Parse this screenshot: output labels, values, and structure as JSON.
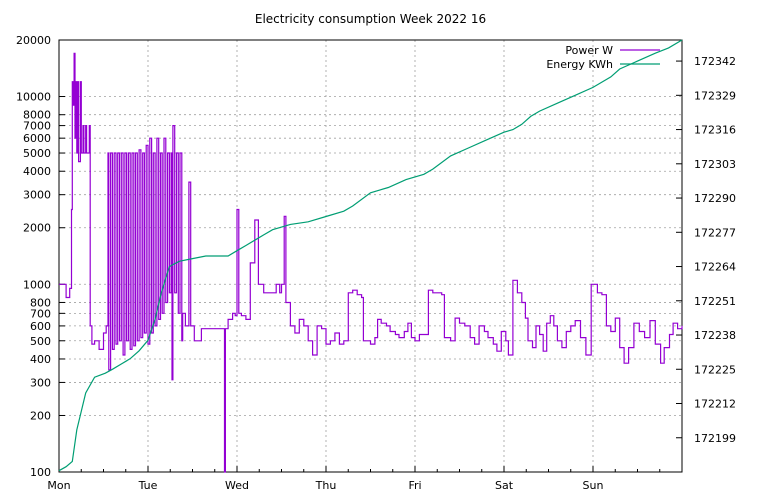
{
  "chart_data": {
    "type": "line",
    "title": "Electricity consumption Week 2022 16",
    "xlabel": "",
    "ylabel": "",
    "x_categories": [
      "Mon",
      "Tue",
      "Wed",
      "Thu",
      "Fri",
      "Sat",
      "Sun"
    ],
    "xlim_days": [
      0,
      7
    ],
    "y_left": {
      "scale": "log",
      "lim": [
        100,
        20000
      ],
      "ticks": [
        100,
        200,
        300,
        400,
        500,
        600,
        700,
        800,
        1000,
        2000,
        3000,
        4000,
        5000,
        6000,
        7000,
        8000,
        10000,
        20000
      ]
    },
    "y_right": {
      "scale": "linear",
      "lim": [
        172186,
        172350
      ],
      "ticks": [
        172199,
        172212,
        172225,
        172238,
        172251,
        172264,
        172277,
        172290,
        172303,
        172316,
        172329,
        172342
      ]
    },
    "grid": true,
    "legend_position": "top-right",
    "series": [
      {
        "name": "Power W",
        "axis": "left",
        "color": "#9400d3",
        "points": [
          [
            0.0,
            1000
          ],
          [
            0.06,
            1000
          ],
          [
            0.08,
            850
          ],
          [
            0.12,
            950
          ],
          [
            0.14,
            2500
          ],
          [
            0.15,
            12000
          ],
          [
            0.16,
            9000
          ],
          [
            0.17,
            17000
          ],
          [
            0.18,
            6000
          ],
          [
            0.19,
            12000
          ],
          [
            0.2,
            5000
          ],
          [
            0.21,
            12000
          ],
          [
            0.22,
            4500
          ],
          [
            0.24,
            12000
          ],
          [
            0.25,
            5000
          ],
          [
            0.27,
            7000
          ],
          [
            0.28,
            5000
          ],
          [
            0.3,
            7000
          ],
          [
            0.31,
            5000
          ],
          [
            0.34,
            7000
          ],
          [
            0.35,
            600
          ],
          [
            0.37,
            480
          ],
          [
            0.4,
            500
          ],
          [
            0.45,
            450
          ],
          [
            0.48,
            450
          ],
          [
            0.5,
            550
          ],
          [
            0.53,
            600
          ],
          [
            0.55,
            5000
          ],
          [
            0.56,
            350
          ],
          [
            0.58,
            5000
          ],
          [
            0.6,
            450
          ],
          [
            0.62,
            5000
          ],
          [
            0.64,
            480
          ],
          [
            0.66,
            5000
          ],
          [
            0.68,
            500
          ],
          [
            0.7,
            5000
          ],
          [
            0.72,
            420
          ],
          [
            0.74,
            5000
          ],
          [
            0.76,
            500
          ],
          [
            0.78,
            5000
          ],
          [
            0.8,
            450
          ],
          [
            0.82,
            5000
          ],
          [
            0.84,
            470
          ],
          [
            0.86,
            5000
          ],
          [
            0.88,
            500
          ],
          [
            0.9,
            5200
          ],
          [
            0.92,
            520
          ],
          [
            0.94,
            5000
          ],
          [
            0.96,
            550
          ],
          [
            0.98,
            5500
          ],
          [
            1.0,
            480
          ],
          [
            1.02,
            6000
          ],
          [
            1.04,
            550
          ],
          [
            1.06,
            5000
          ],
          [
            1.08,
            600
          ],
          [
            1.1,
            6000
          ],
          [
            1.12,
            650
          ],
          [
            1.14,
            5000
          ],
          [
            1.16,
            700
          ],
          [
            1.18,
            6000
          ],
          [
            1.2,
            800
          ],
          [
            1.22,
            5000
          ],
          [
            1.24,
            900
          ],
          [
            1.26,
            5000
          ],
          [
            1.27,
            310
          ],
          [
            1.28,
            7000
          ],
          [
            1.3,
            900
          ],
          [
            1.32,
            5000
          ],
          [
            1.34,
            700
          ],
          [
            1.36,
            5000
          ],
          [
            1.38,
            500
          ],
          [
            1.39,
            700
          ],
          [
            1.42,
            600
          ],
          [
            1.46,
            3500
          ],
          [
            1.48,
            600
          ],
          [
            1.52,
            500
          ],
          [
            1.6,
            580
          ],
          [
            1.75,
            580
          ],
          [
            1.85,
            580
          ],
          [
            1.86,
            100
          ],
          [
            1.87,
            580
          ],
          [
            1.9,
            650
          ],
          [
            1.95,
            700
          ],
          [
            1.98,
            680
          ],
          [
            2.0,
            2500
          ],
          [
            2.02,
            700
          ],
          [
            2.05,
            680
          ],
          [
            2.1,
            650
          ],
          [
            2.15,
            1300
          ],
          [
            2.2,
            2200
          ],
          [
            2.24,
            1000
          ],
          [
            2.3,
            900
          ],
          [
            2.4,
            900
          ],
          [
            2.44,
            1000
          ],
          [
            2.48,
            900
          ],
          [
            2.5,
            1000
          ],
          [
            2.53,
            2300
          ],
          [
            2.55,
            800
          ],
          [
            2.6,
            600
          ],
          [
            2.65,
            550
          ],
          [
            2.7,
            650
          ],
          [
            2.75,
            600
          ],
          [
            2.8,
            500
          ],
          [
            2.85,
            420
          ],
          [
            2.9,
            600
          ],
          [
            2.95,
            580
          ],
          [
            3.0,
            480
          ],
          [
            3.05,
            500
          ],
          [
            3.1,
            550
          ],
          [
            3.15,
            480
          ],
          [
            3.2,
            500
          ],
          [
            3.25,
            900
          ],
          [
            3.3,
            930
          ],
          [
            3.35,
            880
          ],
          [
            3.4,
            850
          ],
          [
            3.42,
            500
          ],
          [
            3.5,
            480
          ],
          [
            3.55,
            520
          ],
          [
            3.58,
            650
          ],
          [
            3.62,
            620
          ],
          [
            3.68,
            600
          ],
          [
            3.72,
            560
          ],
          [
            3.78,
            540
          ],
          [
            3.82,
            520
          ],
          [
            3.88,
            560
          ],
          [
            3.92,
            620
          ],
          [
            3.96,
            520
          ],
          [
            4.0,
            500
          ],
          [
            4.05,
            540
          ],
          [
            4.15,
            930
          ],
          [
            4.2,
            900
          ],
          [
            4.3,
            880
          ],
          [
            4.33,
            520
          ],
          [
            4.4,
            500
          ],
          [
            4.45,
            660
          ],
          [
            4.5,
            620
          ],
          [
            4.56,
            600
          ],
          [
            4.62,
            520
          ],
          [
            4.67,
            480
          ],
          [
            4.72,
            600
          ],
          [
            4.78,
            560
          ],
          [
            4.82,
            520
          ],
          [
            4.88,
            480
          ],
          [
            4.92,
            440
          ],
          [
            4.97,
            560
          ],
          [
            5.02,
            500
          ],
          [
            5.05,
            420
          ],
          [
            5.1,
            1050
          ],
          [
            5.15,
            900
          ],
          [
            5.2,
            800
          ],
          [
            5.24,
            660
          ],
          [
            5.27,
            500
          ],
          [
            5.32,
            460
          ],
          [
            5.36,
            600
          ],
          [
            5.4,
            540
          ],
          [
            5.44,
            440
          ],
          [
            5.48,
            620
          ],
          [
            5.52,
            680
          ],
          [
            5.56,
            600
          ],
          [
            5.6,
            500
          ],
          [
            5.65,
            460
          ],
          [
            5.7,
            560
          ],
          [
            5.75,
            600
          ],
          [
            5.8,
            640
          ],
          [
            5.86,
            520
          ],
          [
            5.92,
            420
          ],
          [
            5.98,
            1000
          ],
          [
            6.05,
            900
          ],
          [
            6.1,
            880
          ],
          [
            6.15,
            600
          ],
          [
            6.2,
            560
          ],
          [
            6.25,
            660
          ],
          [
            6.3,
            460
          ],
          [
            6.35,
            380
          ],
          [
            6.4,
            460
          ],
          [
            6.46,
            620
          ],
          [
            6.52,
            560
          ],
          [
            6.58,
            520
          ],
          [
            6.64,
            640
          ],
          [
            6.7,
            480
          ],
          [
            6.76,
            380
          ],
          [
            6.8,
            460
          ],
          [
            6.86,
            540
          ],
          [
            6.9,
            620
          ],
          [
            6.95,
            580
          ],
          [
            7.0,
            600
          ]
        ]
      },
      {
        "name": "Energy KWh",
        "axis": "right",
        "color": "#009e73",
        "points": [
          [
            0.0,
            172186.5
          ],
          [
            0.08,
            172188
          ],
          [
            0.15,
            172190
          ],
          [
            0.2,
            172202
          ],
          [
            0.3,
            172216
          ],
          [
            0.4,
            172222
          ],
          [
            0.52,
            172223.5
          ],
          [
            0.6,
            172225
          ],
          [
            0.7,
            172227
          ],
          [
            0.8,
            172229
          ],
          [
            0.9,
            172232
          ],
          [
            1.0,
            172236
          ],
          [
            1.08,
            172244
          ],
          [
            1.15,
            172254
          ],
          [
            1.24,
            172264
          ],
          [
            1.35,
            172266
          ],
          [
            1.5,
            172267
          ],
          [
            1.65,
            172268
          ],
          [
            1.9,
            172268
          ],
          [
            2.0,
            172270
          ],
          [
            2.1,
            172272
          ],
          [
            2.2,
            172274
          ],
          [
            2.3,
            172276
          ],
          [
            2.4,
            172278
          ],
          [
            2.6,
            172280
          ],
          [
            2.8,
            172281
          ],
          [
            3.0,
            172283
          ],
          [
            3.2,
            172285
          ],
          [
            3.3,
            172287
          ],
          [
            3.5,
            172292
          ],
          [
            3.7,
            172294
          ],
          [
            3.9,
            172297
          ],
          [
            4.1,
            172299
          ],
          [
            4.2,
            172301
          ],
          [
            4.4,
            172306
          ],
          [
            4.6,
            172309
          ],
          [
            4.8,
            172312
          ],
          [
            5.0,
            172315
          ],
          [
            5.1,
            172316
          ],
          [
            5.2,
            172318
          ],
          [
            5.3,
            172321
          ],
          [
            5.4,
            172323
          ],
          [
            5.6,
            172326
          ],
          [
            5.8,
            172329
          ],
          [
            6.0,
            172332
          ],
          [
            6.1,
            172334
          ],
          [
            6.2,
            172336
          ],
          [
            6.3,
            172339
          ],
          [
            6.5,
            172342
          ],
          [
            6.7,
            172345
          ],
          [
            6.85,
            172347
          ],
          [
            7.0,
            172350
          ]
        ]
      }
    ]
  }
}
